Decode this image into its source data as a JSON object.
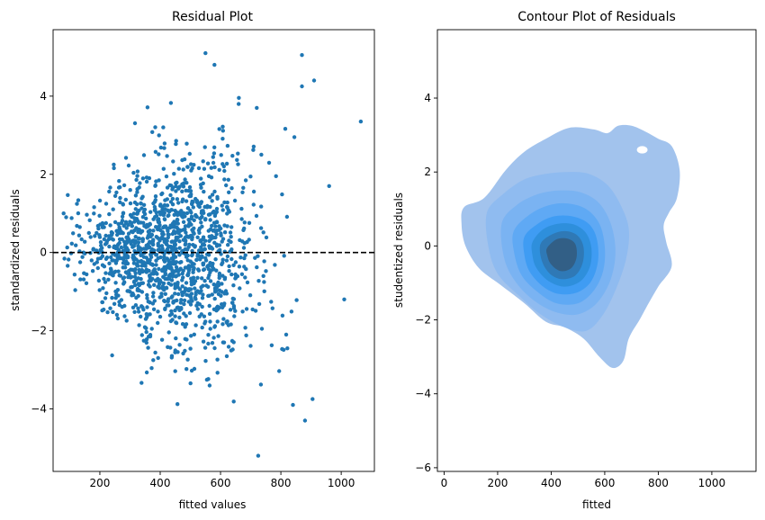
{
  "chart_data": [
    {
      "type": "scatter",
      "title": "Residual Plot",
      "xlabel": "fitted values",
      "ylabel": "standardized residuals",
      "xlim": [
        45,
        1110
      ],
      "ylim": [
        -5.6,
        5.7
      ],
      "xticks": [
        200,
        400,
        600,
        800,
        1000
      ],
      "yticks": [
        -4,
        -2,
        0,
        2,
        4
      ],
      "xtick_labels": [
        "200",
        "400",
        "600",
        "800",
        "1000"
      ],
      "ytick_labels": [
        "−4",
        "−2",
        "0",
        "2",
        "4"
      ],
      "grid": false,
      "reference_line": {
        "y": 0,
        "style": "dashed",
        "color": "#000000"
      },
      "point_color": "#1f77b4",
      "distribution": {
        "n": 1400,
        "x_center": 430,
        "x_sd": 140,
        "y_sd": 1.05
      },
      "notable_points": [
        {
          "x": 550,
          "y": 5.1
        },
        {
          "x": 580,
          "y": 4.8
        },
        {
          "x": 870,
          "y": 5.05
        },
        {
          "x": 910,
          "y": 4.4
        },
        {
          "x": 870,
          "y": 4.25
        },
        {
          "x": 1065,
          "y": 3.35
        },
        {
          "x": 725,
          "y": -5.2
        },
        {
          "x": 880,
          "y": -4.3
        },
        {
          "x": 840,
          "y": -3.9
        },
        {
          "x": 905,
          "y": -3.75
        },
        {
          "x": 1010,
          "y": -1.2
        },
        {
          "x": 960,
          "y": 1.7
        },
        {
          "x": 80,
          "y": 1.0
        },
        {
          "x": 660,
          "y": 3.8
        },
        {
          "x": 720,
          "y": 3.7
        },
        {
          "x": 410,
          "y": 3.2
        }
      ]
    },
    {
      "type": "contour",
      "title": "Contour Plot of Residuals",
      "xlabel": "fitted",
      "ylabel": "studentized residuals",
      "xlim": [
        -25,
        1165
      ],
      "ylim": [
        -6.1,
        5.85
      ],
      "xticks": [
        0,
        200,
        400,
        600,
        800,
        1000
      ],
      "yticks": [
        -6,
        -4,
        -2,
        0,
        2,
        4
      ],
      "xtick_labels": [
        "0",
        "200",
        "400",
        "600",
        "800",
        "1000"
      ],
      "ytick_labels": [
        "−6",
        "−4",
        "−2",
        "0",
        "2",
        "4"
      ],
      "grid": false,
      "fill_color": "#1f77b4",
      "density_peak": {
        "x": 430,
        "y": -0.15
      },
      "levels": [
        {
          "color": "#a2c3ed",
          "points": [
            [
              75,
              1.05
            ],
            [
              150,
              1.3
            ],
            [
              230,
              2.05
            ],
            [
              300,
              2.55
            ],
            [
              380,
              2.9
            ],
            [
              470,
              3.2
            ],
            [
              560,
              3.15
            ],
            [
              610,
              3.05
            ],
            [
              650,
              3.25
            ],
            [
              700,
              3.25
            ],
            [
              750,
              3.1
            ],
            [
              800,
              2.9
            ],
            [
              850,
              2.7
            ],
            [
              880,
              2.05
            ],
            [
              870,
              1.3
            ],
            [
              840,
              0.9
            ],
            [
              820,
              0.55
            ],
            [
              830,
              0.1
            ],
            [
              850,
              -0.55
            ],
            [
              800,
              -1.1
            ],
            [
              760,
              -1.6
            ],
            [
              730,
              -2.0
            ],
            [
              690,
              -2.5
            ],
            [
              670,
              -3.1
            ],
            [
              630,
              -3.3
            ],
            [
              580,
              -3.0
            ],
            [
              520,
              -2.5
            ],
            [
              450,
              -2.2
            ],
            [
              380,
              -2.05
            ],
            [
              300,
              -1.55
            ],
            [
              210,
              -1.05
            ],
            [
              130,
              -0.6
            ],
            [
              80,
              0.0
            ],
            [
              65,
              0.6
            ]
          ],
          "hole": {
            "x": 740,
            "y": 2.6,
            "rx": 20,
            "ry": 0.1
          }
        },
        {
          "color": "#8fbbf0",
          "points": [
            [
              160,
              0.9
            ],
            [
              220,
              1.4
            ],
            [
              300,
              1.8
            ],
            [
              380,
              1.95
            ],
            [
              460,
              2.0
            ],
            [
              540,
              1.95
            ],
            [
              610,
              1.65
            ],
            [
              660,
              1.1
            ],
            [
              690,
              0.45
            ],
            [
              680,
              -0.35
            ],
            [
              640,
              -1.2
            ],
            [
              590,
              -1.9
            ],
            [
              530,
              -2.3
            ],
            [
              450,
              -2.2
            ],
            [
              360,
              -1.85
            ],
            [
              280,
              -1.35
            ],
            [
              200,
              -0.75
            ],
            [
              165,
              0.0
            ]
          ]
        },
        {
          "color": "#7ab3f2",
          "points": [
            [
              215,
              0.6
            ],
            [
              270,
              1.1
            ],
            [
              350,
              1.4
            ],
            [
              430,
              1.5
            ],
            [
              510,
              1.45
            ],
            [
              580,
              1.15
            ],
            [
              625,
              0.55
            ],
            [
              640,
              -0.2
            ],
            [
              620,
              -0.95
            ],
            [
              570,
              -1.55
            ],
            [
              500,
              -1.85
            ],
            [
              420,
              -1.8
            ],
            [
              340,
              -1.5
            ],
            [
              270,
              -1.0
            ],
            [
              225,
              -0.35
            ]
          ]
        },
        {
          "color": "#5fa9f4",
          "points": [
            [
              260,
              0.4
            ],
            [
              320,
              0.85
            ],
            [
              390,
              1.1
            ],
            [
              460,
              1.15
            ],
            [
              530,
              1.0
            ],
            [
              580,
              0.6
            ],
            [
              600,
              0.0
            ],
            [
              595,
              -0.65
            ],
            [
              560,
              -1.2
            ],
            [
              500,
              -1.55
            ],
            [
              420,
              -1.55
            ],
            [
              350,
              -1.25
            ],
            [
              290,
              -0.8
            ],
            [
              262,
              -0.2
            ]
          ]
        },
        {
          "color": "#3f9cf3",
          "points": [
            [
              300,
              0.25
            ],
            [
              350,
              0.6
            ],
            [
              410,
              0.8
            ],
            [
              480,
              0.8
            ],
            [
              540,
              0.6
            ],
            [
              570,
              0.2
            ],
            [
              575,
              -0.4
            ],
            [
              550,
              -0.95
            ],
            [
              500,
              -1.25
            ],
            [
              430,
              -1.3
            ],
            [
              370,
              -1.1
            ],
            [
              320,
              -0.7
            ],
            [
              300,
              -0.25
            ]
          ]
        },
        {
          "color": "#2e8fdc",
          "points": [
            [
              330,
              0.1
            ],
            [
              370,
              0.45
            ],
            [
              425,
              0.6
            ],
            [
              485,
              0.58
            ],
            [
              530,
              0.35
            ],
            [
              550,
              -0.05
            ],
            [
              545,
              -0.55
            ],
            [
              510,
              -0.95
            ],
            [
              450,
              -1.1
            ],
            [
              390,
              -0.95
            ],
            [
              345,
              -0.6
            ],
            [
              330,
              -0.25
            ]
          ]
        },
        {
          "color": "#2f79b6",
          "points": [
            [
              360,
              0.05
            ],
            [
              400,
              0.3
            ],
            [
              450,
              0.4
            ],
            [
              495,
              0.3
            ],
            [
              520,
              0.0
            ],
            [
              518,
              -0.45
            ],
            [
              490,
              -0.8
            ],
            [
              440,
              -0.9
            ],
            [
              395,
              -0.75
            ],
            [
              365,
              -0.4
            ]
          ]
        },
        {
          "color": "#325f86",
          "points": [
            [
              385,
              -0.05
            ],
            [
              420,
              0.18
            ],
            [
              460,
              0.2
            ],
            [
              490,
              0.05
            ],
            [
              495,
              -0.3
            ],
            [
              475,
              -0.6
            ],
            [
              435,
              -0.68
            ],
            [
              400,
              -0.5
            ],
            [
              385,
              -0.25
            ]
          ]
        }
      ]
    }
  ]
}
